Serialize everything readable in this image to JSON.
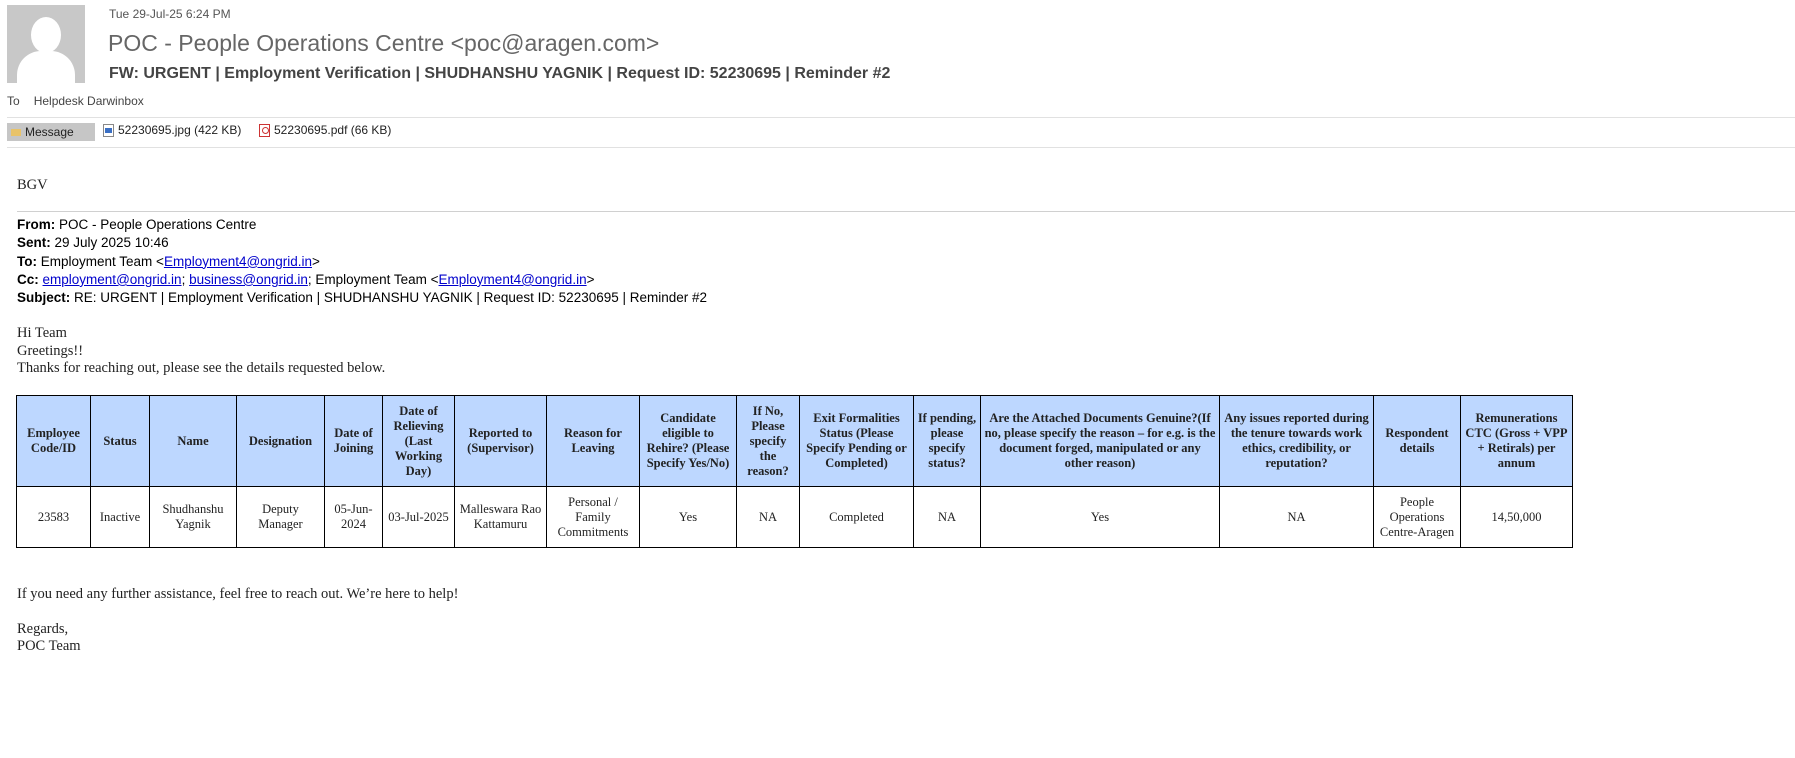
{
  "header": {
    "date": "Tue 29-Jul-25 6:24 PM",
    "sender": "POC - People Operations Centre <poc@aragen.com>",
    "subject": "FW: URGENT | Employment Verification | SHUDHANSHU YAGNIK | Request ID: 52230695 | Reminder #2",
    "to_label": "To",
    "to_value": "Helpdesk Darwinbox"
  },
  "attachments": {
    "message_tab": "Message",
    "files": [
      {
        "name": "52230695.jpg (422 KB)",
        "icon": "image-file-icon"
      },
      {
        "name": "52230695.pdf (66 KB)",
        "icon": "pdf-file-icon"
      }
    ]
  },
  "body": {
    "bgv": "BGV",
    "from_label": "From:",
    "from_value": " POC - People Operations Centre",
    "sent_label": "Sent:",
    "sent_value": " 29 July 2025 10:46",
    "to_label": "To:",
    "to_prefix": " Employment Team <",
    "to_link": "Employment4@ongrid.in",
    "to_suffix": ">",
    "cc_label": "Cc:",
    "cc_link1": "employment@ongrid.in",
    "cc_sep": "; ",
    "cc_link2": "business@ongrid.in",
    "cc_mid": "; Employment Team <",
    "cc_link3": "Employment4@ongrid.in",
    "cc_suffix": ">",
    "subject_label": "Subject:",
    "subject_value": " RE: URGENT | Employment Verification | SHUDHANSHU YAGNIK | Request ID: 52230695 | Reminder #2",
    "greeting1": "Hi Team",
    "greeting2": "Greetings!!",
    "intro": "Thanks for reaching out, please see the details requested below.",
    "closing": "If you need any further assistance, feel free to reach out. We’re here to help!",
    "regards": "Regards,",
    "signature": "POC Team"
  },
  "table": {
    "headers": [
      "Employee Code/ID",
      "Status",
      "Name",
      "Designation",
      "Date of Joining",
      "Date of Relieving (Last Working Day)",
      "Reported to (Supervisor)",
      "Reason for Leaving",
      "Candidate eligible to Rehire? (Please Specify Yes/No)",
      "If No, Please specify the reason?",
      "Exit Formalities Status (Please Specify Pending or Completed)",
      "If pending, please specify status?",
      "Are the Attached Documents Genuine?(If no, please specify the reason – for e.g. is the document forged, manipulated or any other reason)",
      "Any issues reported during the tenure towards work ethics, credibility, or reputation?",
      "Respondent details",
      "Remunerations CTC (Gross + VPP + Retirals) per annum"
    ],
    "row": [
      "23583",
      "Inactive",
      "Shudhanshu Yagnik",
      "Deputy Manager",
      "05-Jun-2024",
      "03-Jul-2025",
      "Malleswara Rao Kattamuru",
      "Personal / Family Commitments",
      "Yes",
      "NA",
      "Completed",
      "NA",
      "Yes",
      "NA",
      "People Operations Centre-Aragen",
      "14,50,000"
    ],
    "header_bg": "#bdd7ff"
  }
}
